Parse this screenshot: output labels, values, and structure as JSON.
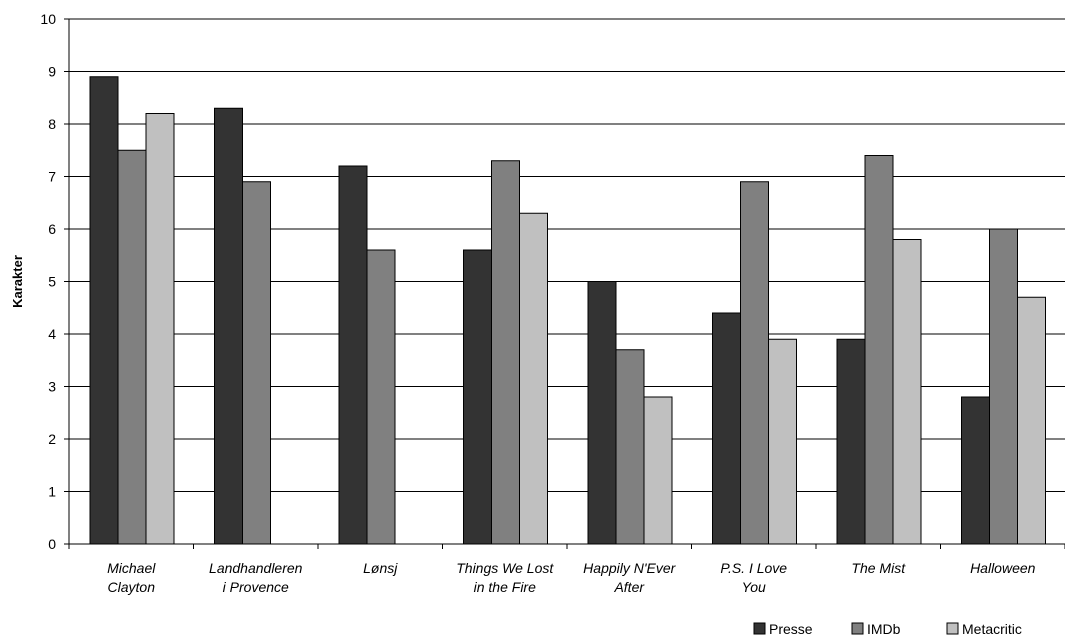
{
  "chart_data": {
    "type": "bar",
    "title": "",
    "xlabel": "",
    "ylabel": "Karakter",
    "ylim": [
      0,
      10
    ],
    "yticks": [
      0,
      1,
      2,
      3,
      4,
      5,
      6,
      7,
      8,
      9,
      10
    ],
    "grid": true,
    "legend_position": "bottom-right",
    "categories": [
      [
        "Michael",
        "Clayton"
      ],
      [
        "Landhandleren",
        "i Provence"
      ],
      [
        "Lønsj"
      ],
      [
        "Things We Lost",
        "in the Fire"
      ],
      [
        "Happily N'Ever",
        "After"
      ],
      [
        "P.S. I Love",
        "You"
      ],
      [
        "The Mist"
      ],
      [
        "Halloween"
      ]
    ],
    "series": [
      {
        "name": "Presse",
        "color": "#333333",
        "values": [
          8.9,
          8.3,
          7.2,
          5.6,
          5.0,
          4.4,
          3.9,
          2.8
        ]
      },
      {
        "name": "IMDb",
        "color": "#808080",
        "values": [
          7.5,
          6.9,
          5.6,
          7.3,
          3.7,
          6.9,
          7.4,
          6.0
        ]
      },
      {
        "name": "Metacritic",
        "color": "#c0c0c0",
        "values": [
          8.2,
          null,
          null,
          6.3,
          2.8,
          3.9,
          5.8,
          4.7
        ]
      }
    ]
  }
}
